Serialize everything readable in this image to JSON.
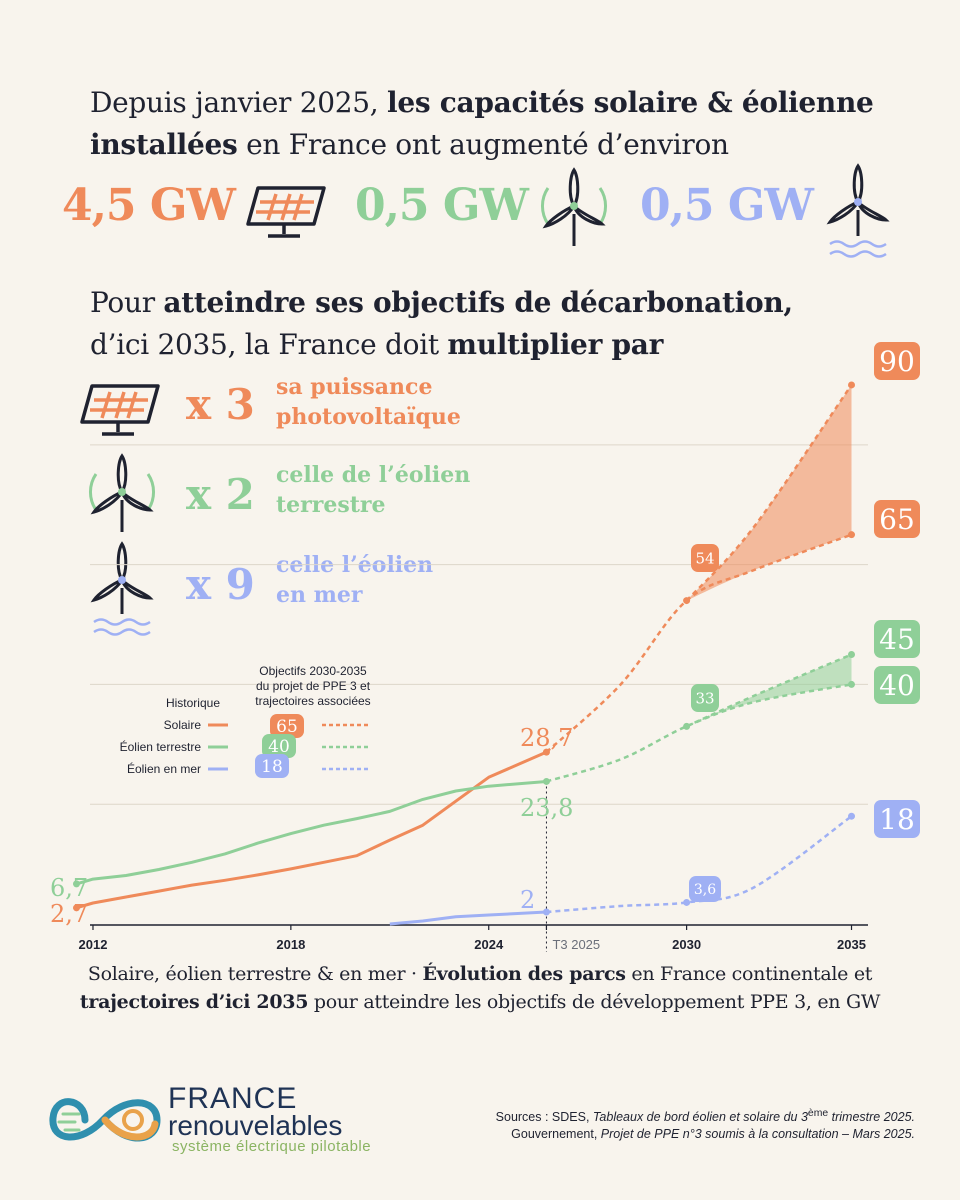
{
  "colors": {
    "solar": "#ef8a5a",
    "onshore": "#8fcf98",
    "offshore": "#9fb0f4",
    "dark": "#1f2230",
    "background": "#f8f4ed"
  },
  "intro": {
    "part1": "Depuis janvier 2025, ",
    "bold": "les capacités solaire & éolienne installées",
    "part2": " en France ont augmenté d’environ"
  },
  "increases": {
    "solar": "4,5 GW",
    "onshore": "0,5 GW",
    "offshore": "0,5 GW",
    "solar_icon": "solar-panel-icon",
    "onshore_icon": "wind-turbine-icon",
    "offshore_icon": "offshore-wind-turbine-icon"
  },
  "goal": {
    "part1": "Pour ",
    "bold1": "atteindre ses objectifs de décarbonation,",
    "part2": "d’ici 2035, la France doit ",
    "bold2": "multiplier par"
  },
  "multipliers": [
    {
      "factor": "x 3",
      "text1": "sa puissance",
      "text2": "photovoltaïque"
    },
    {
      "factor": "x 2",
      "text1": "celle de l’éolien",
      "text2": "terrestre"
    },
    {
      "factor": "x 9",
      "text1": "celle l’éolien",
      "text2": "en mer"
    }
  ],
  "chart_data": {
    "type": "line",
    "x_ticks": [
      "2012",
      "2018",
      "2024",
      "T3 2025",
      "2030",
      "2035"
    ],
    "legend": {
      "historique": "Historique",
      "objectifs": "Objectifs 2030-2035 du projet de PPE 3 et trajectoires associées",
      "solaire": "Solaire",
      "eolien_terrestre": "Éolien terrestre",
      "eolien_mer": "Éolien en mer",
      "badge_solaire": "65",
      "badge_terrestre": "40",
      "badge_mer": "18"
    },
    "series": [
      {
        "name": "Solaire",
        "historical": [
          [
            2011.5,
            2.7
          ],
          [
            2012,
            3.5
          ],
          [
            2013,
            4.5
          ],
          [
            2014,
            5.5
          ],
          [
            2015,
            6.5
          ],
          [
            2016,
            7.3
          ],
          [
            2017,
            8.2
          ],
          [
            2018,
            9.2
          ],
          [
            2019,
            10.3
          ],
          [
            2020,
            11.4
          ],
          [
            2021,
            14
          ],
          [
            2022,
            16.5
          ],
          [
            2023,
            20.5
          ],
          [
            2024,
            24.5
          ],
          [
            2025.75,
            28.7
          ]
        ],
        "projection_low": [
          [
            2025.75,
            28.7
          ],
          [
            2028,
            40
          ],
          [
            2030,
            54
          ],
          [
            2032,
            59
          ],
          [
            2035,
            65
          ]
        ],
        "projection_high": [
          [
            2030,
            54
          ],
          [
            2032,
            66
          ],
          [
            2035,
            90
          ]
        ]
      },
      {
        "name": "Éolien terrestre",
        "historical": [
          [
            2011.5,
            6.7
          ],
          [
            2012,
            7.5
          ],
          [
            2013,
            8.1
          ],
          [
            2014,
            9.1
          ],
          [
            2015,
            10.3
          ],
          [
            2016,
            11.7
          ],
          [
            2017,
            13.5
          ],
          [
            2018,
            15.1
          ],
          [
            2019,
            16.5
          ],
          [
            2020,
            17.6
          ],
          [
            2021,
            18.8
          ],
          [
            2022,
            20.8
          ],
          [
            2023,
            22.2
          ],
          [
            2024,
            23
          ],
          [
            2025.75,
            23.8
          ]
        ],
        "projection_low": [
          [
            2025.75,
            23.8
          ],
          [
            2028,
            27.5
          ],
          [
            2030,
            33
          ],
          [
            2032,
            37
          ],
          [
            2035,
            40
          ]
        ],
        "projection_high": [
          [
            2030,
            33
          ],
          [
            2032,
            38
          ],
          [
            2035,
            45
          ]
        ]
      },
      {
        "name": "Éolien en mer",
        "historical": [
          [
            2021,
            0
          ],
          [
            2022,
            0.5
          ],
          [
            2023,
            1.2
          ],
          [
            2024,
            1.5
          ],
          [
            2025.75,
            2
          ]
        ],
        "projection_low": [
          [
            2025.75,
            2
          ],
          [
            2028,
            3
          ],
          [
            2030,
            3.6
          ],
          [
            2032,
            6
          ],
          [
            2035,
            18
          ]
        ],
        "projection_high": []
      }
    ],
    "point_labels": {
      "solar_2025": "28,7",
      "solar_2030": "54",
      "solar_2035_high": "90",
      "solar_2035_low": "65",
      "onshore_start": "6,7",
      "solar_start": "2,7",
      "onshore_2025": "23,8",
      "onshore_2030": "33",
      "onshore_2035_high": "45",
      "onshore_2035_low": "40",
      "offshore_2025": "2",
      "offshore_2030": "3,6",
      "offshore_2035": "18"
    },
    "ylim": [
      0,
      95
    ],
    "xlim": [
      2011,
      2035.5
    ],
    "grid": true
  },
  "caption": {
    "part1": "Solaire, éolien terrestre & en mer · ",
    "bold1": "Évolution des parcs",
    "part2": " en France continentale et ",
    "bold2": "trajectoires d’ici 2035",
    "part3": " pour atteindre les objectifs de développement PPE 3, en GW"
  },
  "sources": {
    "line1_prefix": "Sources : SDES, ",
    "line1_italic": "Tableaux de bord éolien et solaire du 3",
    "line1_sup": "ème",
    "line1_end": " trimestre 2025.",
    "line2_prefix": "Gouvernement, ",
    "line2_italic": "Projet de PPE n°3 soumis à la consultation – Mars 2025."
  },
  "brand": {
    "line1": "FRANCE",
    "line2": "renouvelables",
    "line3": "système électrique pilotable",
    "logo_icon": "france-renouvelables-logo-icon"
  }
}
